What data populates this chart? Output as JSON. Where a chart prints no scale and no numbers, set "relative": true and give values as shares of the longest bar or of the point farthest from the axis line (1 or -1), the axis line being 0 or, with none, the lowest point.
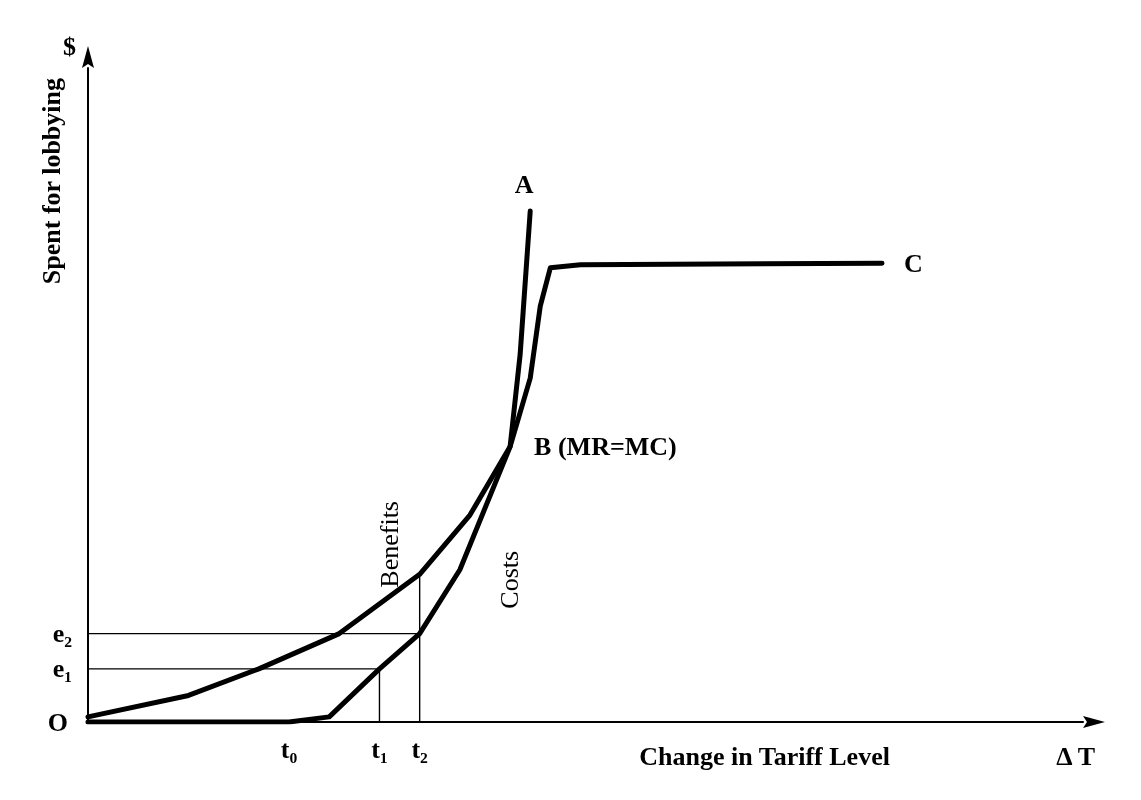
{
  "chart_data": {
    "type": "line",
    "relative": true,
    "xlabel": "Change in Tariff Level",
    "ylabel": "Spent for lobbying",
    "grid": false,
    "legend": false,
    "marker": "none",
    "line_style": "solid",
    "categories": [
      null,
      null,
      null,
      null,
      null,
      null,
      null,
      null,
      null,
      null,
      null,
      null,
      null,
      null,
      null,
      null,
      null,
      null,
      null,
      null,
      "t₀",
      null,
      null,
      null,
      null,
      null,
      null,
      null,
      null,
      "t₁",
      null,
      null,
      null,
      "t₂",
      null,
      null,
      null,
      null,
      null,
      null,
      null,
      null,
      null,
      null,
      null,
      null,
      null,
      null,
      null,
      null,
      null,
      null,
      null,
      null,
      null,
      null,
      null,
      null,
      null,
      null,
      null,
      null,
      null,
      null,
      null,
      null,
      null,
      null,
      null,
      null,
      null,
      null,
      null,
      null,
      null,
      null,
      null,
      null,
      null,
      null,
      null,
      null,
      null,
      null,
      null,
      null,
      null,
      null,
      null,
      null,
      null,
      null,
      null,
      null,
      null,
      null,
      null,
      null,
      null,
      null
    ],
    "series": [
      {
        "name": "Costs",
        "color": "#000000",
        "values": [
          0,
          null,
          null,
          null,
          null,
          null,
          null,
          null,
          null,
          null,
          0,
          null,
          null,
          null,
          null,
          null,
          null,
          null,
          null,
          null,
          0,
          null,
          null,
          null,
          0.01,
          null,
          null,
          null,
          null,
          0.104,
          null,
          null,
          null,
          0.173,
          null,
          null,
          null,
          0.298,
          null,
          null,
          null,
          null,
          0.539,
          0.72,
          1,
          null,
          null,
          null,
          null,
          null,
          null,
          null,
          null,
          null,
          null,
          null,
          null,
          null,
          null,
          null,
          null,
          null,
          null,
          null,
          null,
          null,
          null,
          null,
          null,
          null,
          null,
          null,
          null,
          null,
          null,
          null,
          null,
          null,
          null,
          null,
          null,
          null,
          null,
          null,
          null,
          null,
          null,
          null,
          null,
          null,
          null,
          null,
          null,
          null,
          null,
          null,
          null,
          null,
          null,
          null
        ]
      },
      {
        "name": "Benefits",
        "color": "#000000",
        "values": [
          0.01,
          null,
          null,
          null,
          null,
          null,
          null,
          null,
          null,
          null,
          0.052,
          null,
          null,
          null,
          null,
          null,
          null,
          0.104,
          null,
          null,
          null,
          null,
          null,
          null,
          null,
          0.173,
          null,
          null,
          null,
          null,
          null,
          null,
          null,
          0.289,
          null,
          null,
          null,
          null,
          0.405,
          null,
          null,
          null,
          0.539,
          null,
          0.673,
          0.814,
          0.889,
          null,
          null,
          0.895,
          null,
          null,
          null,
          null,
          null,
          null,
          null,
          null,
          null,
          null,
          null,
          null,
          null,
          null,
          null,
          null,
          null,
          null,
          null,
          null,
          null,
          null,
          null,
          null,
          null,
          null,
          null,
          null,
          null,
          0.898,
          null,
          null,
          null,
          null,
          null,
          null,
          null,
          null,
          null,
          null,
          null,
          null,
          null,
          null,
          null,
          null,
          null,
          null,
          null,
          null
        ]
      },
      {
        "color": "#000000",
        "values": [
          0.104,
          null,
          null,
          null,
          null,
          null,
          null,
          null,
          null,
          null,
          null,
          null,
          null,
          null,
          null,
          null,
          null,
          null,
          null,
          null,
          null,
          null,
          null,
          null,
          null,
          null,
          null,
          null,
          null,
          0.104,
          null,
          null,
          null,
          null,
          null,
          null,
          null,
          null,
          null,
          null,
          null,
          null,
          null,
          null,
          null,
          null,
          null,
          null,
          null,
          null,
          null,
          null,
          null,
          null,
          null,
          null,
          null,
          null,
          null,
          null,
          null,
          null,
          null,
          null,
          null,
          null,
          null,
          null,
          null,
          null,
          null,
          null,
          null,
          null,
          null,
          null,
          null,
          null,
          null,
          null,
          null,
          null,
          null,
          null,
          null,
          null,
          null,
          null,
          null,
          null,
          null,
          null,
          null,
          null,
          null,
          null,
          null,
          null,
          null,
          null
        ]
      },
      {
        "color": "#000000",
        "values": [
          0.173,
          null,
          null,
          null,
          null,
          null,
          null,
          null,
          null,
          null,
          null,
          null,
          null,
          null,
          null,
          null,
          null,
          null,
          null,
          null,
          null,
          null,
          null,
          null,
          null,
          null,
          null,
          null,
          null,
          null,
          null,
          null,
          null,
          0.173,
          null,
          null,
          null,
          null,
          null,
          null,
          null,
          null,
          null,
          null,
          null,
          null,
          null,
          null,
          null,
          null,
          null,
          null,
          null,
          null,
          null,
          null,
          null,
          null,
          null,
          null,
          null,
          null,
          null,
          null,
          null,
          null,
          null,
          null,
          null,
          null,
          null,
          null,
          null,
          null,
          null,
          null,
          null,
          null,
          null,
          null,
          null,
          null,
          null,
          null,
          null,
          null,
          null,
          null,
          null,
          null,
          null,
          null,
          null,
          null,
          null,
          null,
          null,
          null,
          null,
          null
        ]
      },
      {
        "type": "bar",
        "color": "#000000",
        "values": [
          null,
          null,
          null,
          null,
          null,
          null,
          null,
          null,
          null,
          null,
          null,
          null,
          null,
          null,
          null,
          null,
          null,
          null,
          null,
          null,
          null,
          null,
          null,
          null,
          null,
          null,
          null,
          null,
          null,
          0.104,
          null,
          null,
          null,
          0.289,
          null,
          null,
          null,
          null,
          null,
          null,
          null,
          null,
          null,
          null,
          null,
          null,
          null,
          null,
          null,
          null,
          null,
          null,
          null,
          null,
          null,
          null,
          null,
          null,
          null,
          null,
          null,
          null,
          null,
          null,
          null,
          null,
          null,
          null,
          null,
          null,
          null,
          null,
          null,
          null,
          null,
          null,
          null,
          null,
          null,
          null,
          null,
          null,
          null,
          null,
          null,
          null,
          null,
          null,
          null,
          null,
          null,
          null,
          null,
          null,
          null,
          null,
          null,
          null,
          null,
          null
        ]
      }
    ],
    "annotations": [
      "A",
      "C",
      "B (MR=MC)",
      "O",
      "e₁",
      "e₂",
      "$",
      "Δ T"
    ]
  }
}
